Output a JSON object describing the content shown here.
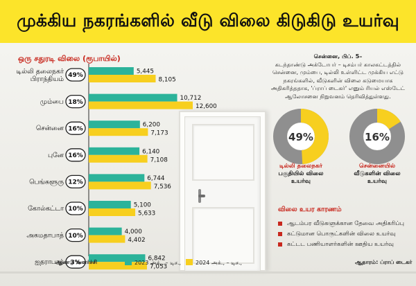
{
  "title": "முக்கிய நகரங்களில் வீடு விலை கிடுகிடு உயர்வு",
  "chart_data": {
    "type": "bar",
    "subtitle": "ஒரு சதுரடி விலை (ரூபாயில்)",
    "categories": [
      "டில்லி தலைநகர் பிராந்தியம்",
      "மும்பை",
      "சென்னை",
      "புனே",
      "பெங்களூரு",
      "கோல்கட்டா",
      "அகமதாபாத்",
      "ஐதராபாத்"
    ],
    "growth_labels": [
      "49%",
      "18%",
      "16%",
      "16%",
      "12%",
      "10%",
      "10%",
      "3%"
    ],
    "growth_title": "ஆண்டு வளர்ச்சி",
    "series": [
      {
        "name": "2023 அக்., – டிச.,",
        "color": "#2cb39a",
        "values": [
          5445,
          10712,
          6200,
          6140,
          6744,
          5100,
          4000,
          6842
        ]
      },
      {
        "name": "2024 அக்., – டிச.,",
        "color": "#f7cf1f",
        "values": [
          8105,
          12600,
          7173,
          7108,
          7536,
          5633,
          4402,
          7053
        ]
      }
    ],
    "value_labels": {
      "series1": [
        "5,445",
        "10,712",
        "6,200",
        "6,140",
        "6,744",
        "5,100",
        "4,000",
        "6,842"
      ],
      "series2": [
        "8,105",
        "12,600",
        "7,173",
        "7,108",
        "7,536",
        "5,633",
        "4,402",
        "7,053"
      ]
    },
    "donuts": [
      {
        "label": "49%",
        "value": 49,
        "caption_red": "டில்லி தலைநகர்",
        "caption": "பகுதியில் விலை உயர்வு"
      },
      {
        "label": "16%",
        "value": 16,
        "caption_red": "சென்னையில்",
        "caption": "வீடுகளின் விலை உயர்வு"
      }
    ]
  },
  "description": {
    "place": "சென்னை, பிப். 5–",
    "text": "கடந்தாண்டு அக்டோபர் – டிசம்பர் காலகட்டத்தில் சென்னை, மும்பை, டில்லி உள்ளிட்ட முக்கிய எட்டு நகரங்களில், வீடுகளின் விலை கடுமையாக அதிகரித்ததாக, 'ப்ராப் டைகர்' எனும் ரியல் எஸ்டேட் ஆலோசனை நிறுவனம் தெரிவித்துள்ளது."
  },
  "reasons": {
    "title": "விலை உயர காரணம்",
    "items": [
      "ஆடம்பர வீடுகளுக்கான தேவை அதிகரிப்பு",
      "கட்டுமான பொருட்களின் விலை உயர்வு",
      "கட்டட பணியாளர்களின் ஊதிய உயர்வு"
    ]
  },
  "source": "ஆதாரம்: ப்ராப் டைகர்",
  "colors": {
    "accent_red": "#c8281e",
    "header_yellow": "#fce42a",
    "teal": "#2cb39a",
    "yellow": "#f7cf1f",
    "donut_grey": "#8f8f8f"
  }
}
